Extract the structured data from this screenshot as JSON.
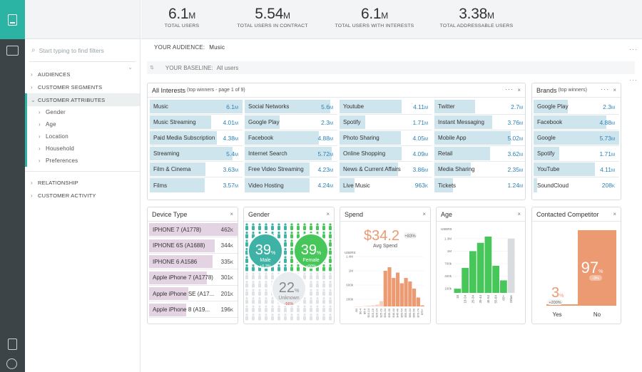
{
  "stats": [
    {
      "value": "6.1",
      "unit": "M",
      "label": "TOTAL USERS"
    },
    {
      "value": "5.54",
      "unit": "M",
      "label": "TOTAL USERS IN CONTRACT"
    },
    {
      "value": "6.1",
      "unit": "M",
      "label": "TOTAL USERS WITH INTERESTS"
    },
    {
      "value": "3.38",
      "unit": "M",
      "label": "TOTAL ADDRESSABLE USERS"
    }
  ],
  "sidebar": {
    "search_placeholder": "Start typing to find filters",
    "audiences": "AUDIENCES",
    "segments": "CUSTOMER SEGMENTS",
    "attributes": "CUSTOMER ATTRIBUTES",
    "sub": [
      "Gender",
      "Age",
      "Location",
      "Household",
      "Preferences"
    ],
    "relationship": "RELATIONSHIP",
    "activity": "CUSTOMER ACTIVITY"
  },
  "audience": {
    "label": "YOUR AUDIENCE:",
    "value": "Music",
    "baseline_label": "YOUR BASELINE:",
    "baseline_value": "All users"
  },
  "interests": {
    "title": "All Interests",
    "subtitle": "(top winners - page 1 of 9)",
    "columns": [
      [
        [
          "Music",
          "6.1",
          "M",
          1.0
        ],
        [
          "Music Streaming",
          "4.01",
          "M",
          0.66
        ],
        [
          "Paid Media Subscription",
          "4.38",
          "M",
          0.72
        ],
        [
          "Streaming",
          "5.4",
          "M",
          0.89
        ],
        [
          "Film & Cinema",
          "3.63",
          "M",
          0.6
        ],
        [
          "Films",
          "3.57",
          "M",
          0.59
        ]
      ],
      [
        [
          "Social Networks",
          "5.6",
          "M",
          0.92
        ],
        [
          "Google Play",
          "2.3",
          "M",
          0.38
        ],
        [
          "Facebook",
          "4.88",
          "M",
          0.8
        ],
        [
          "Internet Search",
          "5.72",
          "M",
          0.94
        ],
        [
          "Free Video Streaming",
          "4.23",
          "M",
          0.7
        ],
        [
          "Video Hosting",
          "4.24",
          "M",
          0.7
        ]
      ],
      [
        [
          "Youtube",
          "4.11",
          "M",
          0.67
        ],
        [
          "Spotify",
          "1.71",
          "M",
          0.28
        ],
        [
          "Photo Sharing",
          "4.05",
          "M",
          0.66
        ],
        [
          "Online Shopping",
          "4.09",
          "M",
          0.67
        ],
        [
          "News & Current Affairs",
          "3.86",
          "M",
          0.63
        ],
        [
          "Live Music",
          "963",
          "K",
          0.16
        ]
      ],
      [
        [
          "Twitter",
          "2.7",
          "M",
          0.44
        ],
        [
          "Instant Messaging",
          "3.76",
          "M",
          0.62
        ],
        [
          "Mobile App",
          "5.02",
          "M",
          0.82
        ],
        [
          "Retail",
          "3.62",
          "M",
          0.6
        ],
        [
          "Media Sharing",
          "2.35",
          "M",
          0.39
        ],
        [
          "Tickets",
          "1.24",
          "M",
          0.2
        ]
      ]
    ]
  },
  "brands": {
    "title": "Brands",
    "subtitle": "(top winners)",
    "rows": [
      [
        "Google Play",
        "2.3",
        "M",
        0.4
      ],
      [
        "Facebook",
        "4.88",
        "M",
        0.85
      ],
      [
        "Google",
        "5.73",
        "M",
        1.0
      ],
      [
        "Spotify",
        "1.71",
        "M",
        0.3
      ],
      [
        "YouTube",
        "4.11",
        "M",
        0.72
      ],
      [
        "SoundCloud",
        "208",
        "K",
        0.04
      ]
    ]
  },
  "device": {
    "title": "Device Type",
    "rows": [
      [
        "IPHONE 7 (A1778)",
        "462",
        "K",
        1.0
      ],
      [
        "IPHONE 6S (A1688)",
        "344",
        "K",
        0.74
      ],
      [
        "IPHONE 6 A1586",
        "335",
        "K",
        0.72
      ],
      [
        "Apple iPhone 7 (A1778)",
        "301",
        "K",
        0.65
      ],
      [
        "Apple iPhone SE (A17...",
        "201",
        "K",
        0.44
      ],
      [
        "Apple iPhone 8 (A19...",
        "196",
        "K",
        0.42
      ]
    ]
  },
  "gender": {
    "title": "Gender",
    "male": {
      "pct": "39",
      "unit": "%",
      "label": "Male",
      "delta": "+6.3%"
    },
    "female": {
      "pct": "39",
      "unit": "%",
      "label": "Female",
      "delta": "+50%"
    },
    "unknown": {
      "pct": "22",
      "unit": "%",
      "label": "Unknown",
      "delta": "-56%"
    }
  },
  "spend": {
    "title": "Spend",
    "value": "$34.2",
    "delta": "+83%",
    "label": "Avg Spend",
    "ylabel": "USERS"
  },
  "age": {
    "title": "Age",
    "ylabel": "USERS"
  },
  "competitor": {
    "title": "Contacted Competitor",
    "yes": {
      "pct": "3",
      "unit": "%",
      "delta": "+200%",
      "label": "Yes"
    },
    "no": {
      "pct": "97",
      "unit": "%",
      "delta": "-3%",
      "label": "No"
    }
  },
  "chart_data": [
    {
      "type": "bar",
      "title": "Spend",
      "ylabel": "USERS",
      "ylim": [
        0,
        1500000
      ],
      "yticks": [
        "200k",
        "600k",
        "1M",
        "1.4M"
      ],
      "categories": [
        "-$0",
        "$0-4",
        "$5-9",
        "$10-14",
        "$15-19",
        "$20-24",
        "$25-29",
        "$30-34",
        "$35-39",
        "$40-44",
        "$45-49",
        "$50-54",
        "$55-59",
        "$60-64",
        "$65-69",
        "$70-74",
        "$75+"
      ],
      "values": [
        0,
        0,
        10000,
        20000,
        30000,
        50000,
        150000,
        1000000,
        1100000,
        800000,
        950000,
        650000,
        800000,
        700000,
        500000,
        250000,
        30000
      ],
      "highlight": [
        false,
        false,
        false,
        false,
        false,
        false,
        false,
        true,
        true,
        true,
        true,
        true,
        true,
        true,
        true,
        true,
        true
      ]
    },
    {
      "type": "bar",
      "title": "Age",
      "ylabel": "USERS",
      "ylim": [
        0,
        1400000
      ],
      "yticks": [
        "100k",
        "400k",
        "700k",
        "1M",
        "1.3M"
      ],
      "categories": [
        "18",
        "18-24",
        "25-34",
        "35-44",
        "45-54",
        "55-64",
        "65+",
        "Other"
      ],
      "values": [
        100000,
        600000,
        1000000,
        1200000,
        1350000,
        650000,
        300000,
        1300000
      ]
    }
  ],
  "colors": {
    "teal": "#2bb3a3",
    "green": "#47c75a",
    "orange": "#ec9a72",
    "blue_bar": "#cfe5ee",
    "device_bar": "#e4d3e2",
    "rail": "#3d4448"
  }
}
